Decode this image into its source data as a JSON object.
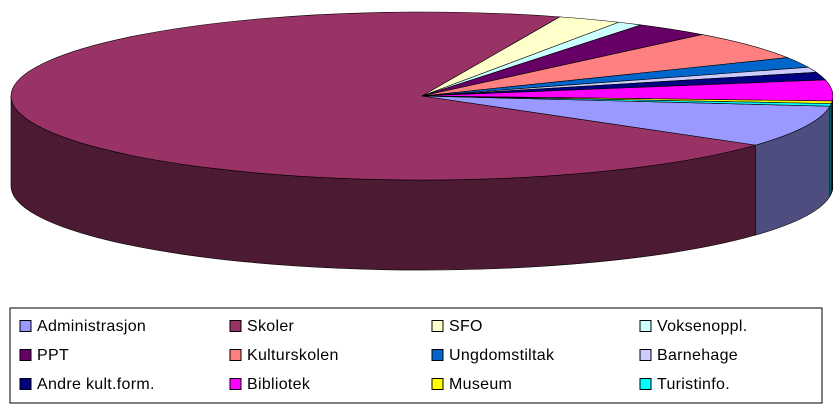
{
  "chart_data": {
    "type": "pie3d",
    "categories": [
      "Administrasjon",
      "Skoler",
      "SFO",
      "Voksenoppl.",
      "PPT",
      "Kulturskolen",
      "Ungdomstiltak",
      "Barnehage",
      "Andre kult.form.",
      "Bibliotek",
      "Museum",
      "Turistinfo."
    ],
    "values": [
      8,
      70.5,
      2.5,
      1,
      3,
      5.5,
      2,
      1,
      1.5,
      4,
      0.5,
      0.5
    ],
    "colors": [
      "#9999ff",
      "#993366",
      "#ffffcc",
      "#ccffff",
      "#660066",
      "#ff8080",
      "#0066cc",
      "#ccccff",
      "#000080",
      "#ff00ff",
      "#ffff00",
      "#00ffff"
    ],
    "legend": "bottom"
  }
}
